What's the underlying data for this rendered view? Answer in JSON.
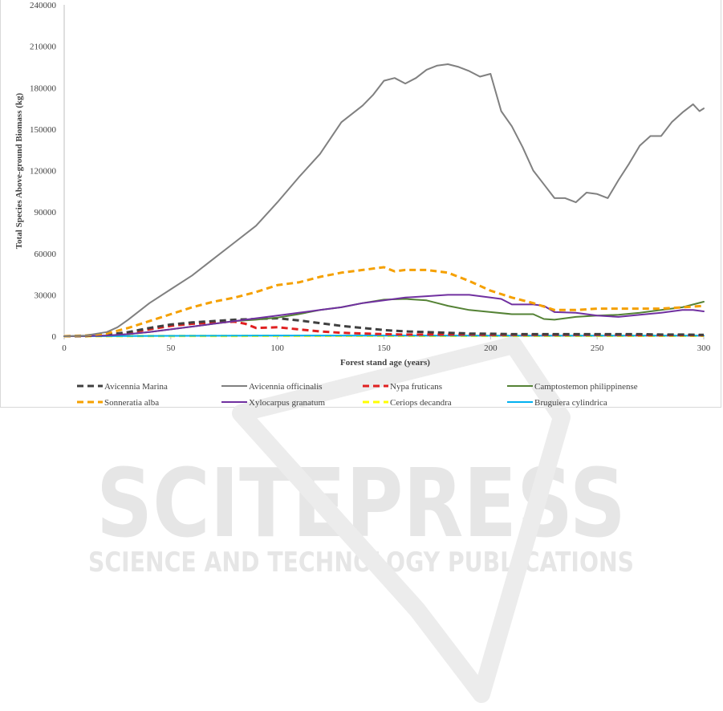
{
  "chart_data": {
    "type": "line",
    "title": "",
    "xlabel": "Forest stand age (years)",
    "ylabel": "Total Species Above-ground Biomass (kg)",
    "xlim": [
      0,
      300
    ],
    "ylim": [
      0,
      240000
    ],
    "x_ticks": [
      0,
      50,
      100,
      150,
      200,
      250,
      300
    ],
    "y_ticks": [
      0,
      30000,
      60000,
      90000,
      120000,
      150000,
      180000,
      210000,
      240000
    ],
    "grid": false,
    "legend_position": "bottom",
    "series": [
      {
        "name": "Avicennia Marina",
        "color": "#404040",
        "dash": "dashed",
        "points": [
          [
            0,
            0
          ],
          [
            10,
            200
          ],
          [
            20,
            1000
          ],
          [
            30,
            3000
          ],
          [
            40,
            6000
          ],
          [
            50,
            8500
          ],
          [
            60,
            10000
          ],
          [
            70,
            11000
          ],
          [
            80,
            12000
          ],
          [
            90,
            12500
          ],
          [
            100,
            13000
          ],
          [
            110,
            11500
          ],
          [
            120,
            9500
          ],
          [
            130,
            7500
          ],
          [
            140,
            6000
          ],
          [
            150,
            4500
          ],
          [
            160,
            3500
          ],
          [
            170,
            3000
          ],
          [
            180,
            2500
          ],
          [
            190,
            2000
          ],
          [
            200,
            1800
          ],
          [
            210,
            1500
          ],
          [
            220,
            1500
          ],
          [
            230,
            1500
          ],
          [
            240,
            1500
          ],
          [
            250,
            1500
          ],
          [
            260,
            1500
          ],
          [
            270,
            1500
          ],
          [
            280,
            1200
          ],
          [
            290,
            1200
          ],
          [
            300,
            1000
          ]
        ]
      },
      {
        "name": "Avicennia officinalis",
        "color": "#808080",
        "dash": "solid",
        "points": [
          [
            0,
            0
          ],
          [
            10,
            500
          ],
          [
            20,
            3000
          ],
          [
            25,
            6500
          ],
          [
            30,
            12000
          ],
          [
            40,
            24000
          ],
          [
            50,
            34000
          ],
          [
            60,
            44000
          ],
          [
            70,
            56000
          ],
          [
            80,
            68000
          ],
          [
            90,
            80000
          ],
          [
            100,
            97000
          ],
          [
            110,
            115000
          ],
          [
            120,
            132000
          ],
          [
            130,
            155000
          ],
          [
            140,
            167000
          ],
          [
            145,
            175000
          ],
          [
            150,
            185000
          ],
          [
            155,
            187000
          ],
          [
            160,
            183000
          ],
          [
            165,
            187000
          ],
          [
            170,
            193000
          ],
          [
            175,
            196000
          ],
          [
            180,
            197000
          ],
          [
            185,
            195000
          ],
          [
            190,
            192000
          ],
          [
            195,
            188000
          ],
          [
            200,
            190000
          ],
          [
            205,
            163000
          ],
          [
            210,
            152000
          ],
          [
            215,
            137000
          ],
          [
            220,
            120000
          ],
          [
            225,
            110000
          ],
          [
            230,
            100000
          ],
          [
            235,
            100000
          ],
          [
            240,
            97000
          ],
          [
            245,
            104000
          ],
          [
            250,
            103000
          ],
          [
            255,
            100000
          ],
          [
            260,
            113000
          ],
          [
            265,
            125000
          ],
          [
            270,
            138000
          ],
          [
            275,
            145000
          ],
          [
            280,
            145000
          ],
          [
            285,
            155000
          ],
          [
            290,
            162000
          ],
          [
            295,
            168000
          ],
          [
            298,
            163000
          ],
          [
            300,
            165000
          ]
        ]
      },
      {
        "name": "Nypa fruticans",
        "color": "#e02020",
        "dash": "dashed",
        "points": [
          [
            0,
            0
          ],
          [
            10,
            200
          ],
          [
            20,
            800
          ],
          [
            30,
            2500
          ],
          [
            40,
            5000
          ],
          [
            50,
            7500
          ],
          [
            60,
            9000
          ],
          [
            70,
            10000
          ],
          [
            80,
            10500
          ],
          [
            85,
            9000
          ],
          [
            90,
            6000
          ],
          [
            100,
            6500
          ],
          [
            110,
            5000
          ],
          [
            120,
            3500
          ],
          [
            130,
            2500
          ],
          [
            140,
            2000
          ],
          [
            150,
            1500
          ],
          [
            160,
            1200
          ],
          [
            170,
            1200
          ],
          [
            180,
            1200
          ],
          [
            190,
            1200
          ],
          [
            200,
            1000
          ],
          [
            210,
            1000
          ],
          [
            220,
            1000
          ],
          [
            230,
            1000
          ],
          [
            240,
            1000
          ],
          [
            250,
            1000
          ],
          [
            260,
            1000
          ],
          [
            270,
            800
          ],
          [
            280,
            800
          ],
          [
            290,
            800
          ],
          [
            300,
            700
          ]
        ]
      },
      {
        "name": "Camptostemon philippinense",
        "color": "#548235",
        "dash": "solid",
        "points": [
          [
            0,
            0
          ],
          [
            10,
            100
          ],
          [
            20,
            500
          ],
          [
            30,
            1500
          ],
          [
            40,
            3000
          ],
          [
            50,
            5000
          ],
          [
            60,
            7000
          ],
          [
            70,
            9000
          ],
          [
            80,
            11000
          ],
          [
            90,
            12000
          ],
          [
            100,
            13500
          ],
          [
            110,
            16000
          ],
          [
            120,
            19000
          ],
          [
            130,
            21000
          ],
          [
            140,
            24000
          ],
          [
            150,
            26500
          ],
          [
            160,
            27000
          ],
          [
            170,
            26000
          ],
          [
            175,
            24000
          ],
          [
            180,
            22000
          ],
          [
            190,
            19000
          ],
          [
            200,
            17500
          ],
          [
            210,
            16000
          ],
          [
            220,
            16000
          ],
          [
            225,
            12500
          ],
          [
            230,
            12000
          ],
          [
            240,
            14000
          ],
          [
            250,
            15000
          ],
          [
            260,
            15500
          ],
          [
            270,
            17000
          ],
          [
            280,
            19000
          ],
          [
            290,
            21000
          ],
          [
            300,
            25000
          ]
        ]
      },
      {
        "name": "Sonneratia alba",
        "color": "#f5a000",
        "dash": "dashed",
        "points": [
          [
            0,
            0
          ],
          [
            10,
            500
          ],
          [
            20,
            2000
          ],
          [
            30,
            6000
          ],
          [
            40,
            11000
          ],
          [
            50,
            16000
          ],
          [
            60,
            21000
          ],
          [
            70,
            25000
          ],
          [
            80,
            28000
          ],
          [
            90,
            32000
          ],
          [
            100,
            37000
          ],
          [
            110,
            39000
          ],
          [
            120,
            43000
          ],
          [
            130,
            46000
          ],
          [
            140,
            48000
          ],
          [
            150,
            50000
          ],
          [
            155,
            47000
          ],
          [
            160,
            48000
          ],
          [
            170,
            48000
          ],
          [
            180,
            46000
          ],
          [
            190,
            40000
          ],
          [
            200,
            33000
          ],
          [
            210,
            28000
          ],
          [
            220,
            24000
          ],
          [
            230,
            19000
          ],
          [
            240,
            19000
          ],
          [
            250,
            20000
          ],
          [
            260,
            20000
          ],
          [
            270,
            20000
          ],
          [
            280,
            20000
          ],
          [
            290,
            21000
          ],
          [
            300,
            22000
          ]
        ]
      },
      {
        "name": "Xylocarpus granatum",
        "color": "#7030a0",
        "dash": "solid",
        "points": [
          [
            0,
            0
          ],
          [
            10,
            100
          ],
          [
            20,
            500
          ],
          [
            30,
            1500
          ],
          [
            40,
            3000
          ],
          [
            50,
            5000
          ],
          [
            60,
            7000
          ],
          [
            70,
            9000
          ],
          [
            80,
            11000
          ],
          [
            90,
            13000
          ],
          [
            100,
            15000
          ],
          [
            110,
            17000
          ],
          [
            120,
            19000
          ],
          [
            130,
            21000
          ],
          [
            140,
            24000
          ],
          [
            150,
            26000
          ],
          [
            160,
            28000
          ],
          [
            170,
            29000
          ],
          [
            180,
            30000
          ],
          [
            190,
            30000
          ],
          [
            200,
            28000
          ],
          [
            205,
            27000
          ],
          [
            210,
            23000
          ],
          [
            220,
            23000
          ],
          [
            225,
            22000
          ],
          [
            230,
            17500
          ],
          [
            240,
            17000
          ],
          [
            250,
            15000
          ],
          [
            260,
            14000
          ],
          [
            270,
            15500
          ],
          [
            280,
            17000
          ],
          [
            290,
            19000
          ],
          [
            295,
            19000
          ],
          [
            300,
            18000
          ]
        ]
      },
      {
        "name": "Ceriops decandra",
        "color": "#ffff00",
        "dash": "dashed",
        "points": [
          [
            0,
            0
          ],
          [
            50,
            200
          ],
          [
            100,
            300
          ],
          [
            150,
            300
          ],
          [
            200,
            300
          ],
          [
            250,
            300
          ],
          [
            300,
            300
          ]
        ]
      },
      {
        "name": "Bruguiera cylindrica",
        "color": "#00b0f0",
        "dash": "solid",
        "points": [
          [
            0,
            0
          ],
          [
            50,
            300
          ],
          [
            100,
            500
          ],
          [
            150,
            500
          ],
          [
            200,
            400
          ],
          [
            250,
            400
          ],
          [
            300,
            400
          ]
        ]
      }
    ]
  },
  "watermark": {
    "line1": "SCITEPRESS",
    "line2": "SCIENCE AND TECHNOLOGY PUBLICATIONS",
    "color": "#e6e6e6"
  }
}
